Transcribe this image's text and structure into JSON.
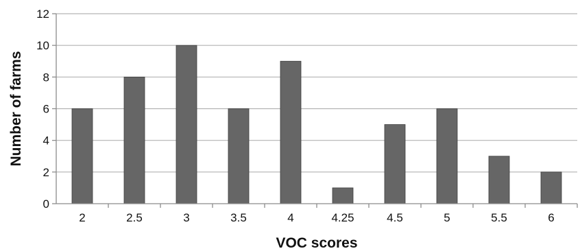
{
  "chart_data": {
    "type": "bar",
    "categories": [
      "2",
      "2.5",
      "3",
      "3.5",
      "4",
      "4.25",
      "4.5",
      "5",
      "5.5",
      "6"
    ],
    "values": [
      6,
      8,
      10,
      6,
      9,
      1,
      5,
      6,
      3,
      2
    ],
    "title": "",
    "xlabel": "VOC scores",
    "ylabel": "Number of farms",
    "ylim": [
      0,
      12
    ],
    "yticks": [
      "0",
      "2",
      "4",
      "6",
      "8",
      "10",
      "12"
    ],
    "grid": "horizontal",
    "legend": "none",
    "bar_color": "#666666"
  }
}
